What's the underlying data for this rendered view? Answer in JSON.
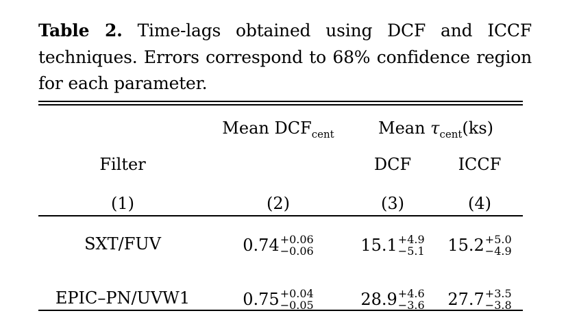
{
  "caption": {
    "label": "Table 2.",
    "text": "Time-lags obtained using DCF and ICCF techniques. Errors correspond to 68% confidence region for each parameter."
  },
  "header": {
    "col2": {
      "main": "Mean DCF",
      "sub": "cent"
    },
    "col34": {
      "prefix": "Mean ",
      "tau": "τ",
      "sub": "cent",
      "suffix": "(ks)"
    },
    "col1_label": "Filter",
    "col3_label": "DCF",
    "col4_label": "ICCF",
    "numbers": [
      "(1)",
      "(2)",
      "(3)",
      "(4)"
    ]
  },
  "rows": [
    {
      "filter": "SXT/FUV",
      "dcf_cent": {
        "value": "0.74",
        "plus": "+0.06",
        "minus": "−0.06"
      },
      "tau_dcf": {
        "value": "15.1",
        "plus": "+4.9",
        "minus": "−5.1"
      },
      "tau_iccf": {
        "value": "15.2",
        "plus": "+5.0",
        "minus": "−4.9"
      }
    },
    {
      "filter": "EPIC–PN/UVW1",
      "dcf_cent": {
        "value": "0.75",
        "plus": "+0.04",
        "minus": "−0.05"
      },
      "tau_dcf": {
        "value": "28.9",
        "plus": "+4.6",
        "minus": "−3.6"
      },
      "tau_iccf": {
        "value": "27.7",
        "plus": "+3.5",
        "minus": "−3.8"
      }
    }
  ]
}
